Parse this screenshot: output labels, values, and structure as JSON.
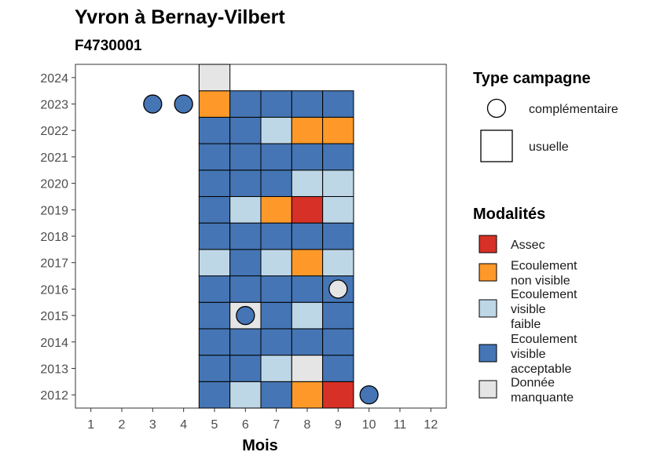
{
  "chart_data": {
    "type": "heatmap",
    "title": "Yvron à Bernay-Vilbert",
    "subtitle": "F4730001",
    "xlabel": "Mois",
    "ylabel": "",
    "x_ticks": [
      "1",
      "2",
      "3",
      "4",
      "5",
      "6",
      "7",
      "8",
      "9",
      "10",
      "11",
      "12"
    ],
    "y_ticks": [
      "2012",
      "2013",
      "2014",
      "2015",
      "2016",
      "2017",
      "2018",
      "2019",
      "2020",
      "2021",
      "2022",
      "2023",
      "2024"
    ],
    "xlim": [
      0.5,
      12.5
    ],
    "ylim": [
      2011.5,
      2024.5
    ],
    "grid": false,
    "colors": {
      "assec": "#d73027",
      "ecoulement_non_visible": "#fe9929",
      "ecoulement_visible_faible": "#bdd7e7",
      "ecoulement_visible_acceptable": "#4575b4",
      "donnee_manquante": "#e5e5e5"
    },
    "legend_campagne": {
      "title": "Type campagne",
      "items": [
        {
          "key": "complementaire",
          "shape": "circle",
          "label": "complémentaire"
        },
        {
          "key": "usuelle",
          "shape": "square",
          "label": "usuelle"
        }
      ]
    },
    "legend_modalites": {
      "title": "Modalités",
      "items": [
        {
          "key": "assec",
          "lines": [
            "Assec"
          ]
        },
        {
          "key": "ecoulement_non_visible",
          "lines": [
            "Ecoulement",
            "non visible"
          ]
        },
        {
          "key": "ecoulement_visible_faible",
          "lines": [
            "Ecoulement",
            "visible",
            "faible"
          ]
        },
        {
          "key": "ecoulement_visible_acceptable",
          "lines": [
            "Ecoulement",
            "visible",
            "acceptable"
          ]
        },
        {
          "key": "donnee_manquante",
          "lines": [
            "Donnée",
            "manquante"
          ]
        }
      ]
    },
    "usuelle": [
      {
        "year": 2012,
        "values": [
          "ecoulement_visible_acceptable",
          "ecoulement_visible_faible",
          "ecoulement_visible_acceptable",
          "ecoulement_non_visible",
          "assec"
        ]
      },
      {
        "year": 2013,
        "values": [
          "ecoulement_visible_acceptable",
          "ecoulement_visible_acceptable",
          "ecoulement_visible_faible",
          "donnee_manquante",
          "ecoulement_visible_acceptable"
        ]
      },
      {
        "year": 2014,
        "values": [
          "ecoulement_visible_acceptable",
          "ecoulement_visible_acceptable",
          "ecoulement_visible_acceptable",
          "ecoulement_visible_acceptable",
          "ecoulement_visible_acceptable"
        ]
      },
      {
        "year": 2015,
        "values": [
          "ecoulement_visible_acceptable",
          "donnee_manquante",
          "ecoulement_visible_acceptable",
          "ecoulement_visible_faible",
          "ecoulement_visible_acceptable"
        ]
      },
      {
        "year": 2016,
        "values": [
          "ecoulement_visible_acceptable",
          "ecoulement_visible_acceptable",
          "ecoulement_visible_acceptable",
          "ecoulement_visible_acceptable",
          "ecoulement_visible_acceptable"
        ]
      },
      {
        "year": 2017,
        "values": [
          "ecoulement_visible_faible",
          "ecoulement_visible_acceptable",
          "ecoulement_visible_faible",
          "ecoulement_non_visible",
          "ecoulement_visible_faible"
        ]
      },
      {
        "year": 2018,
        "values": [
          "ecoulement_visible_acceptable",
          "ecoulement_visible_acceptable",
          "ecoulement_visible_acceptable",
          "ecoulement_visible_acceptable",
          "ecoulement_visible_acceptable"
        ]
      },
      {
        "year": 2019,
        "values": [
          "ecoulement_visible_acceptable",
          "ecoulement_visible_faible",
          "ecoulement_non_visible",
          "assec",
          "ecoulement_visible_faible"
        ]
      },
      {
        "year": 2020,
        "values": [
          "ecoulement_visible_acceptable",
          "ecoulement_visible_acceptable",
          "ecoulement_visible_acceptable",
          "ecoulement_visible_faible",
          "ecoulement_visible_faible"
        ]
      },
      {
        "year": 2021,
        "values": [
          "ecoulement_visible_acceptable",
          "ecoulement_visible_acceptable",
          "ecoulement_visible_acceptable",
          "ecoulement_visible_acceptable",
          "ecoulement_visible_acceptable"
        ]
      },
      {
        "year": 2022,
        "values": [
          "ecoulement_visible_acceptable",
          "ecoulement_visible_acceptable",
          "ecoulement_visible_faible",
          "ecoulement_non_visible",
          "ecoulement_non_visible"
        ]
      },
      {
        "year": 2023,
        "values": [
          "ecoulement_non_visible",
          "ecoulement_visible_acceptable",
          "ecoulement_visible_acceptable",
          "ecoulement_visible_acceptable",
          "ecoulement_visible_acceptable"
        ]
      },
      {
        "year": 2024,
        "values": [
          "donnee_manquante",
          null,
          null,
          null,
          null
        ]
      }
    ],
    "usuelle_months": [
      5,
      6,
      7,
      8,
      9
    ],
    "complementaire": [
      {
        "month": 3,
        "year": 2023,
        "value": "ecoulement_visible_acceptable"
      },
      {
        "month": 4,
        "year": 2023,
        "value": "ecoulement_visible_acceptable"
      },
      {
        "month": 9,
        "year": 2016,
        "value": "donnee_manquante"
      },
      {
        "month": 6,
        "year": 2015,
        "value": "ecoulement_visible_acceptable"
      },
      {
        "month": 10,
        "year": 2012,
        "value": "ecoulement_visible_acceptable"
      }
    ]
  }
}
